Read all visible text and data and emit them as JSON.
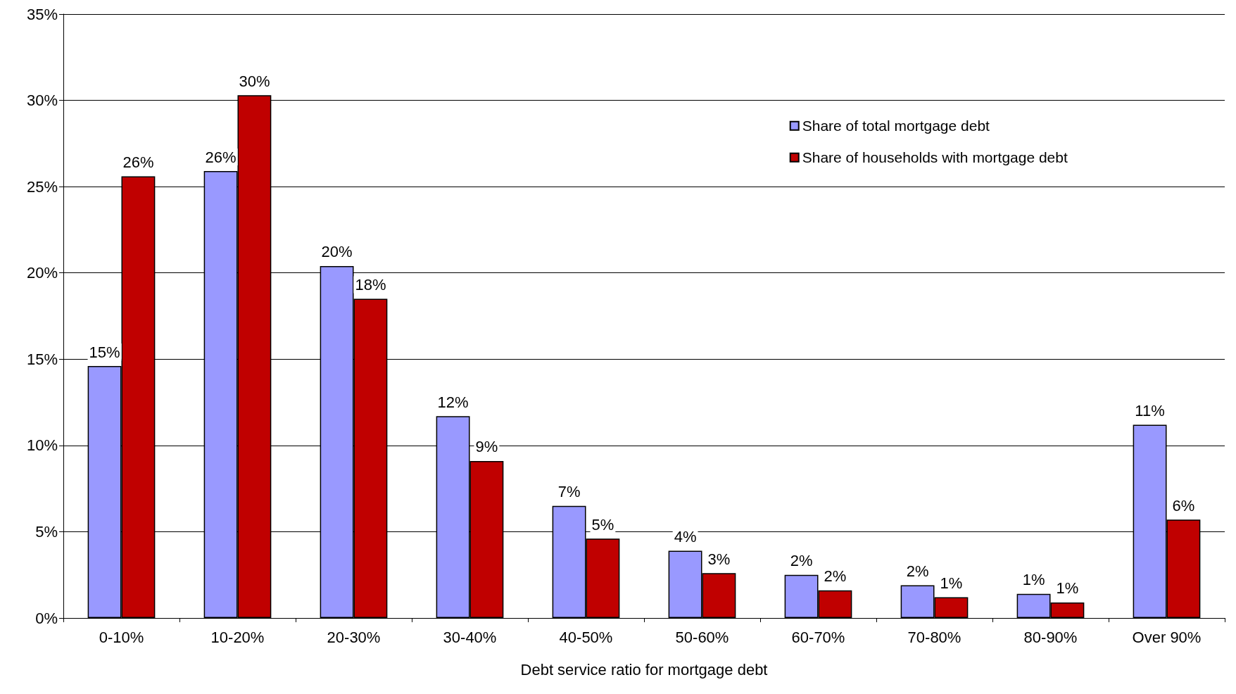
{
  "chart_data": {
    "type": "bar",
    "xlabel": "Debt service ratio for mortgage debt",
    "categories": [
      "0-10%",
      "10-20%",
      "20-30%",
      "30-40%",
      "40-50%",
      "50-60%",
      "60-70%",
      "70-80%",
      "80-90%",
      "Over 90%"
    ],
    "series": [
      {
        "name": "Share of total mortgage debt",
        "color": "#9999ff",
        "values": [
          14.6,
          25.9,
          20.4,
          11.7,
          6.5,
          3.9,
          2.5,
          1.9,
          1.4,
          11.2
        ],
        "value_labels": [
          "15%",
          "26%",
          "20%",
          "12%",
          "7%",
          "4%",
          "2%",
          "2%",
          "1%",
          "11%"
        ]
      },
      {
        "name": "Share of households with mortgage debt",
        "color": "#c00000",
        "values": [
          25.6,
          30.3,
          18.5,
          9.1,
          4.6,
          2.6,
          1.6,
          1.2,
          0.9,
          5.7
        ],
        "value_labels": [
          "26%",
          "30%",
          "18%",
          "9%",
          "5%",
          "3%",
          "2%",
          "1%",
          "1%",
          "6%"
        ]
      }
    ],
    "ylim": [
      0,
      35
    ],
    "yticks": [
      {
        "value": 0,
        "label": "0%"
      },
      {
        "value": 5,
        "label": "5%"
      },
      {
        "value": 10,
        "label": "10%"
      },
      {
        "value": 15,
        "label": "15%"
      },
      {
        "value": 20,
        "label": "20%"
      },
      {
        "value": 25,
        "label": "25%"
      },
      {
        "value": 30,
        "label": "30%"
      },
      {
        "value": 35,
        "label": "35%"
      }
    ],
    "grid": "y",
    "legend": "top right"
  }
}
